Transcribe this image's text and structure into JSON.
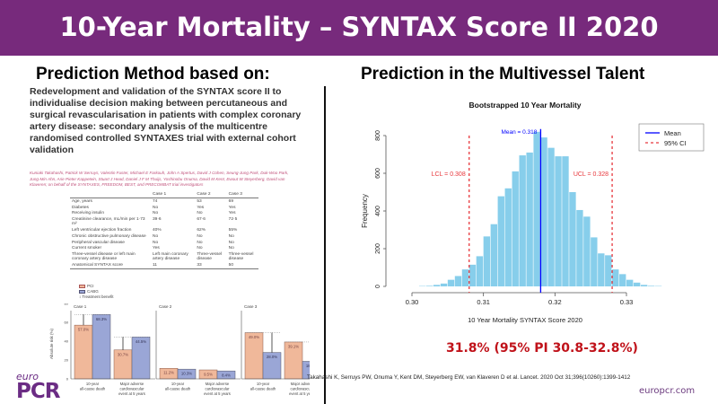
{
  "header": {
    "title": "10-Year Mortality – SYNTAX Score II 2020"
  },
  "left": {
    "heading": "Prediction Method based on:",
    "paper_title": "Redevelopment and validation of the SYNTAX score II to individualise decision making between percutaneous and surgical revascularisation in patients with complex coronary artery disease: secondary analysis of the multicentre randomised controlled SYNTAXES trial with external cohort validation",
    "authors": "Kuniaki Takahashi, Patrick W Serruys, Valentin Fuster, Michael E Farkouh, John A Spertus, David J Cohen, Seung-Jung Park, Duk-Woo Park, Jung-Min Ahn, Arie Pieter Kappetein, Stuart J Head, Daniel J F M Thuijs, Yoshinobu Onuma, David M Kent, Ewout W Steyerberg, David van Klaveren; on behalf of the SYNTAXES, FREEDOM, BEST, and PRECOMBAT trial investigators",
    "table": {
      "headers": [
        "",
        "Case 1",
        "Case 2",
        "Case 3"
      ],
      "rows": [
        [
          "Age, years",
          "74",
          "53",
          "69"
        ],
        [
          "Diabetes",
          "No",
          "Yes",
          "Yes"
        ],
        [
          "Receiving insulin",
          "No",
          "No",
          "Yes"
        ],
        [
          "Creatinine clearance, mL/min per 1·73 m²",
          "39·6",
          "67·6",
          "72·5"
        ],
        [
          "Left ventricular ejection fraction",
          "40%",
          "62%",
          "55%"
        ],
        [
          "Chronic obstructive pulmonary disease",
          "No",
          "No",
          "No"
        ],
        [
          "Peripheral vascular disease",
          "No",
          "No",
          "No"
        ],
        [
          "Current smoker",
          "Yes",
          "No",
          "No"
        ],
        [
          "Three-vessel disease or left main coronary artery disease",
          "Left main coronary artery disease",
          "Three-vessel disease",
          "Three-vessel disease"
        ],
        [
          "Anatomical SYNTAX score",
          "11",
          "33",
          "50"
        ]
      ]
    },
    "legend": {
      "pci": "PCI",
      "cabg": "CABG",
      "benefit": "Treatment benefit"
    },
    "colors": {
      "pci": "#f0b89a",
      "cabg": "#9aa6d6"
    },
    "case_charts": {
      "ylabel": "Absolute risk (%)",
      "yticks": [
        "0",
        "20",
        "40",
        "60",
        "80"
      ],
      "categories": [
        "10-year all-cause death",
        "Major adverse cardiovascular event at 5 years"
      ],
      "cases": [
        {
          "title": "Case 1",
          "pci": [
            57.0,
            30.7
          ],
          "cabg": [
            68.3,
            44.5
          ],
          "labels_pci": [
            "57.0%",
            "30.7%"
          ],
          "labels_cabg": [
            "68.3%",
            "44.5%"
          ]
        },
        {
          "title": "Case 2",
          "pci": [
            11.2,
            9.5
          ],
          "cabg": [
            10.3,
            8.4
          ],
          "labels_pci": [
            "11.2%",
            "9.5%"
          ],
          "labels_cabg": [
            "10.3%",
            "8.4%"
          ]
        },
        {
          "title": "Case 3",
          "pci": [
            49.0,
            39.1
          ],
          "cabg": [
            28.0,
            18.6
          ],
          "labels_pci": [
            "49.0%",
            "39.1%"
          ],
          "labels_cabg": [
            "28.0%",
            "18.6%"
          ]
        }
      ]
    }
  },
  "right": {
    "heading": "Prediction in the Multivessel Talent",
    "result": "31.8% (95% PI 30.8-32.8%)"
  },
  "chart_data": {
    "type": "bar",
    "title": "Bootstrapped 10 Year Mortality",
    "xlabel": "10 Year Mortality SYNTAX Score 2020",
    "ylabel": "Frequency",
    "xlim": [
      0.3,
      0.33
    ],
    "ylim": [
      0,
      800
    ],
    "xticks": [
      "0.30",
      "0.31",
      "0.32",
      "0.33"
    ],
    "yticks": [
      "0",
      "200",
      "400",
      "600",
      "800"
    ],
    "bin_width": 0.001,
    "bin_starts": [
      0.301,
      0.302,
      0.303,
      0.304,
      0.305,
      0.306,
      0.307,
      0.308,
      0.309,
      0.31,
      0.311,
      0.312,
      0.313,
      0.314,
      0.315,
      0.316,
      0.317,
      0.318,
      0.319,
      0.32,
      0.321,
      0.322,
      0.323,
      0.324,
      0.325,
      0.326,
      0.327,
      0.328,
      0.329,
      0.33,
      0.331,
      0.332,
      0.333,
      0.334
    ],
    "values": [
      2,
      3,
      8,
      15,
      35,
      55,
      90,
      115,
      160,
      265,
      330,
      478,
      520,
      610,
      695,
      710,
      820,
      790,
      735,
      690,
      690,
      500,
      405,
      370,
      260,
      175,
      165,
      90,
      65,
      35,
      20,
      8,
      3,
      2
    ],
    "bar_color": "#87ceeb",
    "mean": {
      "value": 0.318,
      "label": "Mean = 0.318",
      "color": "#0000ff"
    },
    "lcl": {
      "value": 0.308,
      "label": "LCL = 0.308",
      "color": "#e8383d"
    },
    "ucl": {
      "value": 0.328,
      "label": "UCL = 0.328",
      "color": "#e8383d"
    },
    "legend": {
      "placement": "top-right",
      "entries": [
        "Mean",
        "95% CI"
      ]
    }
  },
  "footer": {
    "citation": "Takahashi K, Serruys PW, Onuma Y, Kent DM, Steyerberg EW, van Klaveren D et al. Lancet. 2020 Oct 31;396(10260):1399-1412",
    "site": "europcr.com",
    "logo": "euro PCR"
  }
}
